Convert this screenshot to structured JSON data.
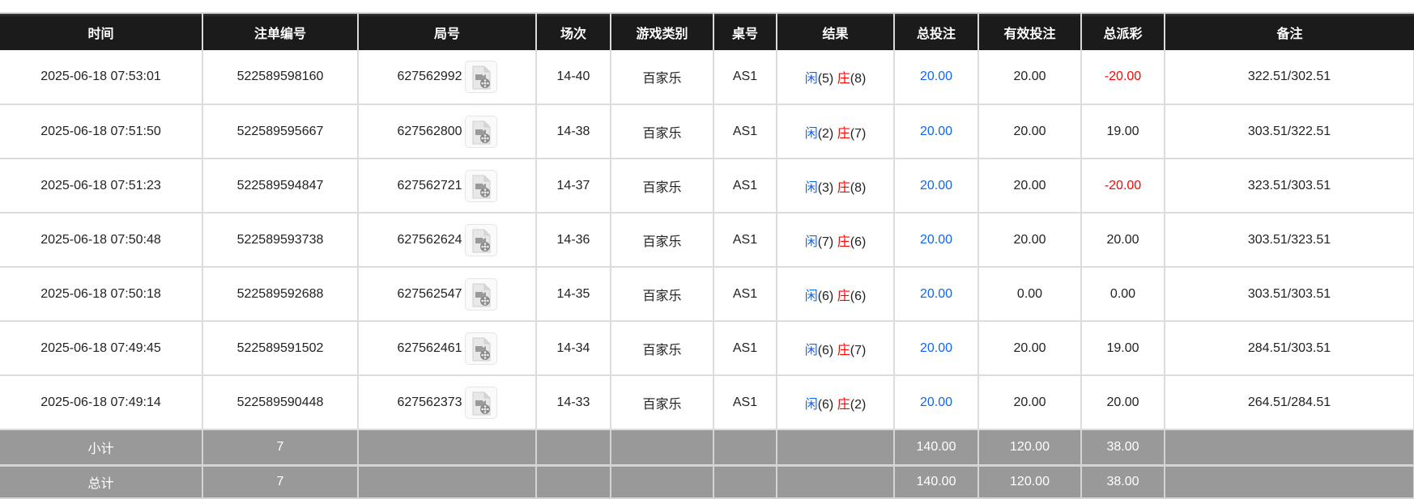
{
  "headers": [
    "时间",
    "注单编号",
    "局号",
    "场次",
    "游戏类别",
    "桌号",
    "结果",
    "总投注",
    "有效投注",
    "总派彩",
    "备注"
  ],
  "rows": [
    {
      "time": "2025-06-18 07:53:01",
      "bet_id": "522589598160",
      "round": "627562992",
      "shoe": "14-40",
      "game": "百家乐",
      "table": "AS1",
      "player_label": "闲",
      "player": "(5)",
      "banker_label": "庄",
      "banker": "(8)",
      "total_bet": "20.00",
      "valid_bet": "20.00",
      "payout": "-20.00",
      "payout_negative": true,
      "note": "322.51/302.51"
    },
    {
      "time": "2025-06-18 07:51:50",
      "bet_id": "522589595667",
      "round": "627562800",
      "shoe": "14-38",
      "game": "百家乐",
      "table": "AS1",
      "player_label": "闲",
      "player": "(2)",
      "banker_label": "庄",
      "banker": "(7)",
      "total_bet": "20.00",
      "valid_bet": "20.00",
      "payout": "19.00",
      "payout_negative": false,
      "note": "303.51/322.51"
    },
    {
      "time": "2025-06-18 07:51:23",
      "bet_id": "522589594847",
      "round": "627562721",
      "shoe": "14-37",
      "game": "百家乐",
      "table": "AS1",
      "player_label": "闲",
      "player": "(3)",
      "banker_label": "庄",
      "banker": "(8)",
      "total_bet": "20.00",
      "valid_bet": "20.00",
      "payout": "-20.00",
      "payout_negative": true,
      "note": "323.51/303.51"
    },
    {
      "time": "2025-06-18 07:50:48",
      "bet_id": "522589593738",
      "round": "627562624",
      "shoe": "14-36",
      "game": "百家乐",
      "table": "AS1",
      "player_label": "闲",
      "player": "(7)",
      "banker_label": "庄",
      "banker": "(6)",
      "total_bet": "20.00",
      "valid_bet": "20.00",
      "payout": "20.00",
      "payout_negative": false,
      "note": "303.51/323.51"
    },
    {
      "time": "2025-06-18 07:50:18",
      "bet_id": "522589592688",
      "round": "627562547",
      "shoe": "14-35",
      "game": "百家乐",
      "table": "AS1",
      "player_label": "闲",
      "player": "(6)",
      "banker_label": "庄",
      "banker": "(6)",
      "total_bet": "20.00",
      "valid_bet": "0.00",
      "payout": "0.00",
      "payout_negative": false,
      "note": "303.51/303.51"
    },
    {
      "time": "2025-06-18 07:49:45",
      "bet_id": "522589591502",
      "round": "627562461",
      "shoe": "14-34",
      "game": "百家乐",
      "table": "AS1",
      "player_label": "闲",
      "player": "(6)",
      "banker_label": "庄",
      "banker": "(7)",
      "total_bet": "20.00",
      "valid_bet": "20.00",
      "payout": "19.00",
      "payout_negative": false,
      "note": "284.51/303.51"
    },
    {
      "time": "2025-06-18 07:49:14",
      "bet_id": "522589590448",
      "round": "627562373",
      "shoe": "14-33",
      "game": "百家乐",
      "table": "AS1",
      "player_label": "闲",
      "player": "(6)",
      "banker_label": "庄",
      "banker": "(2)",
      "total_bet": "20.00",
      "valid_bet": "20.00",
      "payout": "20.00",
      "payout_negative": false,
      "note": "264.51/284.51"
    }
  ],
  "summary": [
    {
      "label": "小计",
      "count": "7",
      "total_bet": "140.00",
      "valid_bet": "120.00",
      "payout": "38.00"
    },
    {
      "label": "总计",
      "count": "7",
      "total_bet": "140.00",
      "valid_bet": "120.00",
      "payout": "38.00"
    }
  ],
  "colors": {
    "header_bg": "#1b1b1b",
    "summary_bg": "#999999",
    "blue": "#1166ee",
    "red": "#ff0000"
  },
  "icons": {
    "replay": "video-file-icon"
  }
}
